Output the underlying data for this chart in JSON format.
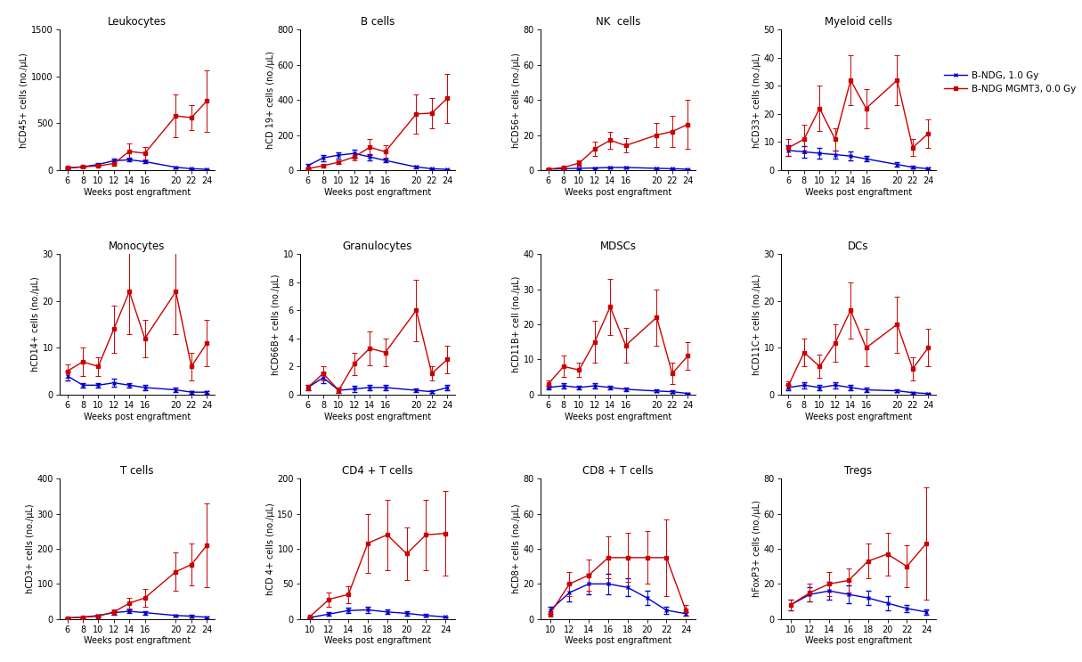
{
  "panels": [
    {
      "title": "Leukocytes",
      "ylabel": "hCD45+ cells (no./μL)",
      "xlim": [
        5,
        25
      ],
      "ylim": [
        0,
        1500
      ],
      "yticks": [
        0,
        500,
        1000,
        1500
      ],
      "xticks": [
        6,
        8,
        10,
        12,
        14,
        16,
        20,
        22,
        24
      ],
      "blue_x": [
        6,
        8,
        10,
        12,
        14,
        16,
        20,
        22,
        24
      ],
      "blue_y": [
        20,
        35,
        60,
        100,
        110,
        90,
        30,
        15,
        8
      ],
      "blue_err": [
        8,
        12,
        18,
        22,
        20,
        15,
        8,
        6,
        4
      ],
      "red_x": [
        6,
        8,
        10,
        12,
        14,
        16,
        20,
        22,
        24
      ],
      "red_y": [
        25,
        35,
        45,
        70,
        200,
        180,
        580,
        560,
        740
      ],
      "red_err": [
        8,
        12,
        12,
        25,
        80,
        70,
        230,
        130,
        330
      ]
    },
    {
      "title": "B cells",
      "ylabel": "hCD 19+ cells (no./μL)",
      "xlim": [
        5,
        25
      ],
      "ylim": [
        0,
        800
      ],
      "yticks": [
        0,
        200,
        400,
        600,
        800
      ],
      "xticks": [
        6,
        8,
        10,
        12,
        14,
        16,
        20,
        22,
        24
      ],
      "blue_x": [
        6,
        8,
        10,
        12,
        14,
        16,
        20,
        22,
        24
      ],
      "blue_y": [
        25,
        70,
        85,
        95,
        75,
        55,
        18,
        8,
        4
      ],
      "blue_err": [
        8,
        18,
        18,
        22,
        18,
        12,
        6,
        4,
        2
      ],
      "red_x": [
        6,
        8,
        10,
        12,
        14,
        16,
        20,
        22,
        24
      ],
      "red_y": [
        8,
        25,
        45,
        75,
        130,
        105,
        320,
        325,
        410
      ],
      "red_err": [
        4,
        8,
        12,
        22,
        45,
        35,
        110,
        85,
        140
      ]
    },
    {
      "title": "NK  cells",
      "ylabel": "hCD56+ cells (no./μL)",
      "xlim": [
        5,
        25
      ],
      "ylim": [
        0,
        80
      ],
      "yticks": [
        0,
        20,
        40,
        60,
        80
      ],
      "xticks": [
        6,
        8,
        10,
        12,
        14,
        16,
        20,
        22,
        24
      ],
      "blue_x": [
        6,
        8,
        10,
        12,
        14,
        16,
        20,
        22,
        24
      ],
      "blue_y": [
        0.5,
        0.8,
        1.0,
        1.2,
        1.5,
        1.5,
        1.0,
        0.8,
        0.5
      ],
      "blue_err": [
        0.3,
        0.3,
        0.3,
        0.4,
        0.4,
        0.4,
        0.3,
        0.3,
        0.2
      ],
      "red_x": [
        6,
        8,
        10,
        12,
        14,
        16,
        20,
        22,
        24
      ],
      "red_y": [
        0.5,
        1.5,
        4,
        12,
        17,
        14,
        20,
        22,
        26
      ],
      "red_err": [
        0.3,
        0.8,
        1.5,
        4,
        5,
        4,
        7,
        9,
        14
      ]
    },
    {
      "title": "Myeloid cells",
      "ylabel": "hCD33+ cells (no./μL)",
      "xlim": [
        5,
        25
      ],
      "ylim": [
        0,
        50
      ],
      "yticks": [
        0,
        10,
        20,
        30,
        40,
        50
      ],
      "xticks": [
        6,
        8,
        10,
        12,
        14,
        16,
        20,
        22,
        24
      ],
      "blue_x": [
        6,
        8,
        10,
        12,
        14,
        16,
        20,
        22,
        24
      ],
      "blue_y": [
        7,
        6.5,
        6,
        5.5,
        5,
        4,
        2,
        1,
        0.5
      ],
      "blue_err": [
        2,
        2,
        2,
        1.5,
        1.5,
        1,
        0.8,
        0.5,
        0.3
      ],
      "red_x": [
        6,
        8,
        10,
        12,
        14,
        16,
        20,
        22,
        24
      ],
      "red_y": [
        8,
        11,
        22,
        11,
        32,
        22,
        32,
        8,
        13
      ],
      "red_err": [
        3,
        5,
        8,
        4,
        9,
        7,
        9,
        3,
        5
      ]
    },
    {
      "title": "Monocytes",
      "ylabel": "hCD14+ cells (no./μL)",
      "xlim": [
        5,
        25
      ],
      "ylim": [
        0,
        30
      ],
      "yticks": [
        0,
        10,
        20,
        30
      ],
      "xticks": [
        6,
        8,
        10,
        12,
        14,
        16,
        20,
        22,
        24
      ],
      "blue_x": [
        6,
        8,
        10,
        12,
        14,
        16,
        20,
        22,
        24
      ],
      "blue_y": [
        4,
        2,
        2,
        2.5,
        2,
        1.5,
        1,
        0.5,
        0.5
      ],
      "blue_err": [
        1,
        0.5,
        0.5,
        0.8,
        0.5,
        0.5,
        0.4,
        0.3,
        0.3
      ],
      "red_x": [
        6,
        8,
        10,
        12,
        14,
        16,
        20,
        22,
        24
      ],
      "red_y": [
        5,
        7,
        6,
        14,
        22,
        12,
        22,
        6,
        11
      ],
      "red_err": [
        1.5,
        3,
        2,
        5,
        9,
        4,
        9,
        3,
        5
      ]
    },
    {
      "title": "Granulocytes",
      "ylabel": "hCD66B+ cells (no./μL)",
      "xlim": [
        5,
        25
      ],
      "ylim": [
        0,
        10
      ],
      "yticks": [
        0,
        2,
        4,
        6,
        8,
        10
      ],
      "xticks": [
        6,
        8,
        10,
        12,
        14,
        16,
        20,
        22,
        24
      ],
      "blue_x": [
        6,
        8,
        10,
        12,
        14,
        16,
        20,
        22,
        24
      ],
      "blue_y": [
        0.5,
        1.2,
        0.3,
        0.4,
        0.5,
        0.5,
        0.3,
        0.2,
        0.5
      ],
      "blue_err": [
        0.2,
        0.4,
        0.2,
        0.2,
        0.2,
        0.2,
        0.1,
        0.1,
        0.2
      ],
      "red_x": [
        6,
        8,
        10,
        12,
        14,
        16,
        20,
        22,
        24
      ],
      "red_y": [
        0.5,
        1.5,
        0.3,
        2.2,
        3.3,
        3.0,
        6.0,
        1.5,
        2.5
      ],
      "red_err": [
        0.2,
        0.5,
        0.2,
        0.8,
        1.2,
        1.0,
        2.2,
        0.5,
        1.0
      ]
    },
    {
      "title": "MDSCs",
      "ylabel": "hCD11B+ cell (no./μL)",
      "xlim": [
        5,
        25
      ],
      "ylim": [
        0,
        40
      ],
      "yticks": [
        0,
        10,
        20,
        30,
        40
      ],
      "xticks": [
        6,
        8,
        10,
        12,
        14,
        16,
        20,
        22,
        24
      ],
      "blue_x": [
        6,
        8,
        10,
        12,
        14,
        16,
        20,
        22,
        24
      ],
      "blue_y": [
        2,
        2.5,
        2,
        2.5,
        2,
        1.5,
        1.0,
        0.8,
        0.3
      ],
      "blue_err": [
        0.5,
        0.8,
        0.6,
        0.8,
        0.6,
        0.5,
        0.4,
        0.3,
        0.2
      ],
      "red_x": [
        6,
        8,
        10,
        12,
        14,
        16,
        20,
        22,
        24
      ],
      "red_y": [
        3,
        8,
        7,
        15,
        25,
        14,
        22,
        6,
        11
      ],
      "red_err": [
        1,
        3,
        2,
        6,
        8,
        5,
        8,
        3,
        4
      ]
    },
    {
      "title": "DCs",
      "ylabel": "hCD11C+ cells (no./μL)",
      "xlim": [
        5,
        25
      ],
      "ylim": [
        0,
        30
      ],
      "yticks": [
        0,
        10,
        20,
        30
      ],
      "xticks": [
        6,
        8,
        10,
        12,
        14,
        16,
        20,
        22,
        24
      ],
      "blue_x": [
        6,
        8,
        10,
        12,
        14,
        16,
        20,
        22,
        24
      ],
      "blue_y": [
        1.5,
        2,
        1.5,
        2,
        1.5,
        1,
        0.8,
        0.4,
        0.2
      ],
      "blue_err": [
        0.5,
        0.7,
        0.5,
        0.7,
        0.5,
        0.4,
        0.3,
        0.2,
        0.1
      ],
      "red_x": [
        6,
        8,
        10,
        12,
        14,
        16,
        20,
        22,
        24
      ],
      "red_y": [
        2,
        9,
        6,
        11,
        18,
        10,
        15,
        5.5,
        10
      ],
      "red_err": [
        0.8,
        3,
        2.5,
        4,
        6,
        4,
        6,
        2.5,
        4
      ]
    },
    {
      "title": "T cells",
      "ylabel": "hCD3+ cells (no./μL)",
      "xlim": [
        5,
        25
      ],
      "ylim": [
        0,
        400
      ],
      "yticks": [
        0,
        100,
        200,
        300,
        400
      ],
      "xticks": [
        6,
        8,
        10,
        12,
        14,
        16,
        20,
        22,
        24
      ],
      "blue_x": [
        6,
        8,
        10,
        12,
        14,
        16,
        20,
        22,
        24
      ],
      "blue_y": [
        3,
        5,
        10,
        18,
        22,
        18,
        10,
        8,
        5
      ],
      "blue_err": [
        1.5,
        2,
        3,
        5,
        6,
        5,
        3,
        3,
        2
      ],
      "red_x": [
        6,
        8,
        10,
        12,
        14,
        16,
        20,
        22,
        24
      ],
      "red_y": [
        3,
        5,
        8,
        20,
        45,
        60,
        135,
        155,
        210
      ],
      "red_err": [
        1.5,
        2,
        3,
        8,
        15,
        25,
        55,
        60,
        120
      ]
    },
    {
      "title": "CD4 + T cells",
      "ylabel": "hCD 4+ cells (no./μL)",
      "xlim": [
        9,
        25
      ],
      "ylim": [
        0,
        200
      ],
      "yticks": [
        0,
        50,
        100,
        150,
        200
      ],
      "xticks": [
        10,
        12,
        14,
        16,
        18,
        20,
        22,
        24
      ],
      "blue_x": [
        10,
        12,
        14,
        16,
        18,
        20,
        22,
        24
      ],
      "blue_y": [
        2,
        7,
        12,
        13,
        10,
        8,
        5,
        3
      ],
      "blue_err": [
        0.8,
        2.5,
        4,
        4,
        3,
        3,
        2,
        1
      ],
      "red_x": [
        10,
        12,
        14,
        16,
        18,
        20,
        22,
        24
      ],
      "red_y": [
        3,
        28,
        35,
        108,
        120,
        93,
        120,
        122
      ],
      "red_err": [
        1,
        10,
        12,
        42,
        50,
        37,
        50,
        60
      ]
    },
    {
      "title": "CD8 + T cells",
      "ylabel": "hCD8+ cells (no./μL)",
      "xlim": [
        9,
        25
      ],
      "ylim": [
        0,
        80
      ],
      "yticks": [
        0,
        20,
        40,
        60,
        80
      ],
      "xticks": [
        10,
        12,
        14,
        16,
        18,
        20,
        22,
        24
      ],
      "blue_x": [
        10,
        12,
        14,
        16,
        18,
        20,
        22,
        24
      ],
      "blue_y": [
        5,
        15,
        20,
        20,
        18,
        12,
        5,
        3
      ],
      "blue_err": [
        2,
        5,
        6,
        6,
        5,
        4,
        2,
        1
      ],
      "red_x": [
        10,
        12,
        14,
        16,
        18,
        20,
        22,
        24
      ],
      "red_y": [
        3,
        20,
        25,
        35,
        35,
        35,
        35,
        5
      ],
      "red_err": [
        1.5,
        7,
        9,
        12,
        14,
        15,
        22,
        3
      ]
    },
    {
      "title": "Tregs",
      "ylabel": "hFoxP3+ cells (no./μL)",
      "xlim": [
        9,
        25
      ],
      "ylim": [
        0,
        80
      ],
      "yticks": [
        0,
        20,
        40,
        60,
        80
      ],
      "xticks": [
        10,
        12,
        14,
        16,
        18,
        20,
        22,
        24
      ],
      "blue_x": [
        10,
        12,
        14,
        16,
        18,
        20,
        22,
        24
      ],
      "blue_y": [
        8,
        14,
        16,
        14,
        12,
        9,
        6,
        4
      ],
      "blue_err": [
        3,
        4,
        5,
        5,
        4,
        4,
        2,
        1.5
      ],
      "red_x": [
        10,
        12,
        14,
        16,
        18,
        20,
        22,
        24
      ],
      "red_y": [
        8,
        15,
        20,
        22,
        33,
        37,
        30,
        43
      ],
      "red_err": [
        3,
        5,
        7,
        7,
        10,
        12,
        12,
        32
      ]
    }
  ],
  "legend_labels": [
    "B-NDG, 1.0 Gy",
    "B-NDG MGMT3, 0.0 Gy"
  ],
  "blue_color": "#0000CC",
  "red_color": "#CC0000",
  "xlabel": "Weeks post engraftment",
  "marker_size": 3.5,
  "line_width": 1.0,
  "capsize": 2,
  "elinewidth": 0.7,
  "capthick": 0.7,
  "font_size_title": 8.5,
  "font_size_label": 7,
  "font_size_tick": 7,
  "font_size_legend": 7.5
}
